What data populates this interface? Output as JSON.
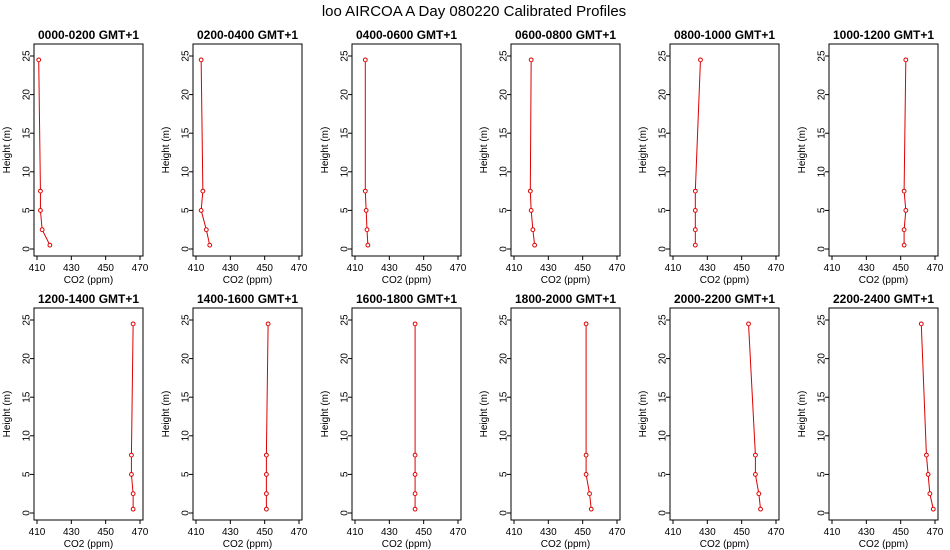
{
  "title": "loo AIRCOA A  Day 080220  Calibrated Profiles",
  "colors": {
    "series": "#dd0000",
    "axis": "#000000"
  },
  "chart_data": [
    {
      "type": "line",
      "title": "0000-0200 GMT+1",
      "xlabel": "CO2 (ppm)",
      "ylabel": "Height (m)",
      "xlim": [
        410,
        470
      ],
      "ylim": [
        0,
        25
      ],
      "xticks": [
        410,
        430,
        450,
        470
      ],
      "yticks": [
        0,
        5,
        10,
        15,
        20,
        25
      ],
      "points": [
        {
          "x": 417.5,
          "y": 0.5
        },
        {
          "x": 413,
          "y": 2.5
        },
        {
          "x": 412,
          "y": 5
        },
        {
          "x": 412,
          "y": 7.5
        },
        {
          "x": 411,
          "y": 24.5
        }
      ]
    },
    {
      "type": "line",
      "title": "0200-0400 GMT+1",
      "xlabel": "CO2 (ppm)",
      "ylabel": "Height (m)",
      "xlim": [
        410,
        470
      ],
      "ylim": [
        0,
        25
      ],
      "xticks": [
        410,
        430,
        450,
        470
      ],
      "yticks": [
        0,
        5,
        10,
        15,
        20,
        25
      ],
      "points": [
        {
          "x": 418,
          "y": 0.5
        },
        {
          "x": 416,
          "y": 2.5
        },
        {
          "x": 413,
          "y": 5
        },
        {
          "x": 414,
          "y": 7.5
        },
        {
          "x": 413,
          "y": 24.5
        }
      ]
    },
    {
      "type": "line",
      "title": "0400-0600 GMT+1",
      "xlabel": "CO2 (ppm)",
      "ylabel": "Height (m)",
      "xlim": [
        410,
        470
      ],
      "ylim": [
        0,
        25
      ],
      "xticks": [
        410,
        430,
        450,
        470
      ],
      "yticks": [
        0,
        5,
        10,
        15,
        20,
        25
      ],
      "points": [
        {
          "x": 417.5,
          "y": 0.5
        },
        {
          "x": 417,
          "y": 2.5
        },
        {
          "x": 416.5,
          "y": 5
        },
        {
          "x": 416,
          "y": 7.5
        },
        {
          "x": 416,
          "y": 24.5
        }
      ]
    },
    {
      "type": "line",
      "title": "0600-0800 GMT+1",
      "xlabel": "CO2 (ppm)",
      "ylabel": "Height (m)",
      "xlim": [
        410,
        470
      ],
      "ylim": [
        0,
        25
      ],
      "xticks": [
        410,
        430,
        450,
        470
      ],
      "yticks": [
        0,
        5,
        10,
        15,
        20,
        25
      ],
      "points": [
        {
          "x": 422,
          "y": 0.5
        },
        {
          "x": 421,
          "y": 2.5
        },
        {
          "x": 420,
          "y": 5
        },
        {
          "x": 419.5,
          "y": 7.5
        },
        {
          "x": 420,
          "y": 24.5
        }
      ]
    },
    {
      "type": "line",
      "title": "0800-1000 GMT+1",
      "xlabel": "CO2 (ppm)",
      "ylabel": "Height (m)",
      "xlim": [
        410,
        470
      ],
      "ylim": [
        0,
        25
      ],
      "xticks": [
        410,
        430,
        450,
        470
      ],
      "yticks": [
        0,
        5,
        10,
        15,
        20,
        25
      ],
      "points": [
        {
          "x": 423,
          "y": 0.5
        },
        {
          "x": 423,
          "y": 2.5
        },
        {
          "x": 423,
          "y": 5
        },
        {
          "x": 423,
          "y": 7.5
        },
        {
          "x": 426,
          "y": 24.5
        }
      ]
    },
    {
      "type": "line",
      "title": "1000-1200 GMT+1",
      "xlabel": "CO2 (ppm)",
      "ylabel": "Height (m)",
      "xlim": [
        410,
        470
      ],
      "ylim": [
        0,
        25
      ],
      "xticks": [
        410,
        430,
        450,
        470
      ],
      "yticks": [
        0,
        5,
        10,
        15,
        20,
        25
      ],
      "points": [
        {
          "x": 452,
          "y": 0.5
        },
        {
          "x": 452,
          "y": 2.5
        },
        {
          "x": 453,
          "y": 5
        },
        {
          "x": 452,
          "y": 7.5
        },
        {
          "x": 453,
          "y": 24.5
        }
      ]
    },
    {
      "type": "line",
      "title": "1200-1400 GMT+1",
      "xlabel": "CO2 (ppm)",
      "ylabel": "Height (m)",
      "xlim": [
        410,
        470
      ],
      "ylim": [
        0,
        25
      ],
      "xticks": [
        410,
        430,
        450,
        470
      ],
      "yticks": [
        0,
        5,
        10,
        15,
        20,
        25
      ],
      "points": [
        {
          "x": 466,
          "y": 0.5
        },
        {
          "x": 466,
          "y": 2.5
        },
        {
          "x": 465,
          "y": 5
        },
        {
          "x": 465,
          "y": 7.5
        },
        {
          "x": 466,
          "y": 24.5
        }
      ]
    },
    {
      "type": "line",
      "title": "1400-1600 GMT+1",
      "xlabel": "CO2 (ppm)",
      "ylabel": "Height (m)",
      "xlim": [
        410,
        470
      ],
      "ylim": [
        0,
        25
      ],
      "xticks": [
        410,
        430,
        450,
        470
      ],
      "yticks": [
        0,
        5,
        10,
        15,
        20,
        25
      ],
      "points": [
        {
          "x": 451,
          "y": 0.5
        },
        {
          "x": 451,
          "y": 2.5
        },
        {
          "x": 451,
          "y": 5
        },
        {
          "x": 451,
          "y": 7.5
        },
        {
          "x": 452,
          "y": 24.5
        }
      ]
    },
    {
      "type": "line",
      "title": "1600-1800 GMT+1",
      "xlabel": "CO2 (ppm)",
      "ylabel": "Height (m)",
      "xlim": [
        410,
        470
      ],
      "ylim": [
        0,
        25
      ],
      "xticks": [
        410,
        430,
        450,
        470
      ],
      "yticks": [
        0,
        5,
        10,
        15,
        20,
        25
      ],
      "points": [
        {
          "x": 445,
          "y": 0.5
        },
        {
          "x": 445,
          "y": 2.5
        },
        {
          "x": 445,
          "y": 5
        },
        {
          "x": 445,
          "y": 7.5
        },
        {
          "x": 445,
          "y": 24.5
        }
      ]
    },
    {
      "type": "line",
      "title": "1800-2000 GMT+1",
      "xlabel": "CO2 (ppm)",
      "ylabel": "Height (m)",
      "xlim": [
        410,
        470
      ],
      "ylim": [
        0,
        25
      ],
      "xticks": [
        410,
        430,
        450,
        470
      ],
      "yticks": [
        0,
        5,
        10,
        15,
        20,
        25
      ],
      "points": [
        {
          "x": 455,
          "y": 0.5
        },
        {
          "x": 454,
          "y": 2.5
        },
        {
          "x": 452,
          "y": 5
        },
        {
          "x": 452,
          "y": 7.5
        },
        {
          "x": 452,
          "y": 24.5
        }
      ]
    },
    {
      "type": "line",
      "title": "2000-2200 GMT+1",
      "xlabel": "CO2 (ppm)",
      "ylabel": "Height (m)",
      "xlim": [
        410,
        470
      ],
      "ylim": [
        0,
        25
      ],
      "xticks": [
        410,
        430,
        450,
        470
      ],
      "yticks": [
        0,
        5,
        10,
        15,
        20,
        25
      ],
      "points": [
        {
          "x": 461,
          "y": 0.5
        },
        {
          "x": 460,
          "y": 2.5
        },
        {
          "x": 458,
          "y": 5
        },
        {
          "x": 458,
          "y": 7.5
        },
        {
          "x": 454,
          "y": 24.5
        }
      ]
    },
    {
      "type": "line",
      "title": "2200-2400 GMT+1",
      "xlabel": "CO2 (ppm)",
      "ylabel": "Height (m)",
      "xlim": [
        410,
        470
      ],
      "ylim": [
        0,
        25
      ],
      "xticks": [
        410,
        430,
        450,
        470
      ],
      "yticks": [
        0,
        5,
        10,
        15,
        20,
        25
      ],
      "points": [
        {
          "x": 469,
          "y": 0.5
        },
        {
          "x": 467,
          "y": 2.5
        },
        {
          "x": 466,
          "y": 5
        },
        {
          "x": 465,
          "y": 7.5
        },
        {
          "x": 462,
          "y": 24.5
        }
      ]
    }
  ]
}
